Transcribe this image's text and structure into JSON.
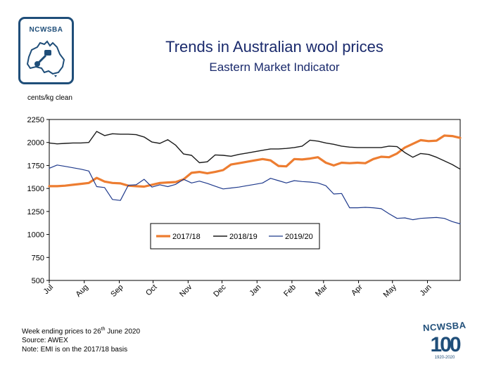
{
  "logo": {
    "text": "NCWSBA"
  },
  "brand_badge": {
    "name": "NCWSBA",
    "number": "100",
    "years": "1920-2020"
  },
  "unit_label": "cents/kg clean",
  "colors": {
    "s1718": "#ed7d31",
    "s1819": "#1a1a1a",
    "s1920": "#1f3a8c",
    "title": "#1a2a6c",
    "brand": "#1f4e79"
  },
  "chart_data": {
    "type": "line",
    "title": "Trends in Australian wool prices",
    "subtitle": "Eastern Market Indicator",
    "ylabel": "cents/kg clean",
    "ylim": [
      500,
      2250
    ],
    "yticks": [
      500,
      750,
      1000,
      1250,
      1500,
      1750,
      2000,
      2250
    ],
    "xlim": [
      0,
      52
    ],
    "x_ticks": [
      {
        "label": "Jul",
        "x": 0
      },
      {
        "label": "Aug",
        "x": 4.43
      },
      {
        "label": "Sep",
        "x": 8.86
      },
      {
        "label": "Oct",
        "x": 13.14
      },
      {
        "label": "Nov",
        "x": 17.57
      },
      {
        "label": "Dec",
        "x": 21.86
      },
      {
        "label": "Jan",
        "x": 26.29
      },
      {
        "label": "Feb",
        "x": 30.71
      },
      {
        "label": "Mar",
        "x": 34.71
      },
      {
        "label": "Apr",
        "x": 39.14
      },
      {
        "label": "May",
        "x": 43.43
      },
      {
        "label": "Jun",
        "x": 47.86
      }
    ],
    "legend": {
      "position": "inside-bottom-center"
    },
    "series": [
      {
        "name": "2017/18",
        "color": "#ed7d31",
        "width": 3.2,
        "points": [
          [
            0,
            1525
          ],
          [
            1,
            1525
          ],
          [
            2,
            1530
          ],
          [
            3,
            1540
          ],
          [
            4,
            1550
          ],
          [
            5,
            1560
          ],
          [
            6,
            1615
          ],
          [
            7,
            1575
          ],
          [
            8,
            1560
          ],
          [
            9,
            1555
          ],
          [
            10,
            1530
          ],
          [
            11,
            1525
          ],
          [
            12,
            1520
          ],
          [
            13,
            1540
          ],
          [
            14,
            1560
          ],
          [
            15,
            1565
          ],
          [
            16,
            1570
          ],
          [
            17,
            1600
          ],
          [
            18,
            1670
          ],
          [
            19,
            1680
          ],
          [
            20,
            1665
          ],
          [
            21,
            1680
          ],
          [
            22,
            1700
          ],
          [
            23,
            1760
          ],
          [
            24,
            1775
          ],
          [
            25,
            1790
          ],
          [
            26,
            1805
          ],
          [
            27,
            1820
          ],
          [
            28,
            1805
          ],
          [
            29,
            1745
          ],
          [
            30,
            1740
          ],
          [
            31,
            1820
          ],
          [
            32,
            1815
          ],
          [
            33,
            1825
          ],
          [
            34,
            1840
          ],
          [
            35,
            1780
          ],
          [
            36,
            1750
          ],
          [
            37,
            1780
          ],
          [
            38,
            1775
          ],
          [
            39,
            1780
          ],
          [
            40,
            1775
          ],
          [
            41,
            1820
          ],
          [
            42,
            1845
          ],
          [
            43,
            1840
          ],
          [
            44,
            1880
          ],
          [
            45,
            1945
          ],
          [
            46,
            1985
          ],
          [
            47,
            2025
          ],
          [
            48,
            2015
          ],
          [
            49,
            2020
          ],
          [
            50,
            2075
          ],
          [
            51,
            2070
          ],
          [
            52,
            2050
          ]
        ]
      },
      {
        "name": "2018/19",
        "color": "#1a1a1a",
        "width": 1.4,
        "points": [
          [
            0,
            1995
          ],
          [
            1,
            1985
          ],
          [
            2,
            1990
          ],
          [
            3,
            1995
          ],
          [
            4,
            1995
          ],
          [
            5,
            2000
          ],
          [
            6,
            2120
          ],
          [
            7,
            2075
          ],
          [
            8,
            2095
          ],
          [
            9,
            2090
          ],
          [
            10,
            2090
          ],
          [
            11,
            2085
          ],
          [
            12,
            2060
          ],
          [
            13,
            2005
          ],
          [
            14,
            1990
          ],
          [
            15,
            2030
          ],
          [
            16,
            1970
          ],
          [
            17,
            1875
          ],
          [
            18,
            1860
          ],
          [
            19,
            1780
          ],
          [
            20,
            1790
          ],
          [
            21,
            1865
          ],
          [
            22,
            1860
          ],
          [
            23,
            1850
          ],
          [
            24,
            1870
          ],
          [
            25,
            1885
          ],
          [
            26,
            1900
          ],
          [
            27,
            1915
          ],
          [
            28,
            1930
          ],
          [
            29,
            1930
          ],
          [
            30,
            1935
          ],
          [
            31,
            1945
          ],
          [
            32,
            1960
          ],
          [
            33,
            2025
          ],
          [
            34,
            2015
          ],
          [
            35,
            1995
          ],
          [
            36,
            1980
          ],
          [
            37,
            1960
          ],
          [
            38,
            1950
          ],
          [
            39,
            1945
          ],
          [
            40,
            1945
          ],
          [
            41,
            1945
          ],
          [
            42,
            1945
          ],
          [
            43,
            1960
          ],
          [
            44,
            1955
          ],
          [
            45,
            1890
          ],
          [
            46,
            1840
          ],
          [
            47,
            1880
          ],
          [
            48,
            1870
          ],
          [
            49,
            1840
          ],
          [
            50,
            1800
          ],
          [
            51,
            1760
          ],
          [
            52,
            1710
          ]
        ]
      },
      {
        "name": "2019/20",
        "color": "#1f3a8c",
        "width": 1.2,
        "points": [
          [
            0,
            1720
          ],
          [
            1,
            1755
          ],
          [
            2,
            1740
          ],
          [
            3,
            1725
          ],
          [
            4,
            1710
          ],
          [
            5,
            1690
          ],
          [
            6,
            1520
          ],
          [
            7,
            1510
          ],
          [
            8,
            1380
          ],
          [
            9,
            1370
          ],
          [
            10,
            1535
          ],
          [
            11,
            1540
          ],
          [
            12,
            1600
          ],
          [
            13,
            1515
          ],
          [
            14,
            1540
          ],
          [
            15,
            1520
          ],
          [
            16,
            1545
          ],
          [
            17,
            1600
          ],
          [
            18,
            1560
          ],
          [
            19,
            1580
          ],
          [
            20,
            1555
          ],
          [
            21,
            1525
          ],
          [
            22,
            1495
          ],
          [
            23,
            1505
          ],
          [
            24,
            1515
          ],
          [
            25,
            1530
          ],
          [
            26,
            1545
          ],
          [
            27,
            1560
          ],
          [
            28,
            1610
          ],
          [
            29,
            1585
          ],
          [
            30,
            1560
          ],
          [
            31,
            1585
          ],
          [
            32,
            1575
          ],
          [
            33,
            1570
          ],
          [
            34,
            1560
          ],
          [
            35,
            1530
          ],
          [
            36,
            1440
          ],
          [
            37,
            1445
          ],
          [
            38,
            1290
          ],
          [
            39,
            1290
          ],
          [
            40,
            1295
          ],
          [
            41,
            1290
          ],
          [
            42,
            1280
          ],
          [
            43,
            1225
          ],
          [
            44,
            1175
          ],
          [
            45,
            1180
          ],
          [
            46,
            1160
          ],
          [
            47,
            1175
          ],
          [
            48,
            1180
          ],
          [
            49,
            1185
          ],
          [
            50,
            1175
          ],
          [
            51,
            1140
          ],
          [
            52,
            1115
          ]
        ]
      }
    ]
  },
  "footnotes": {
    "line1_prefix": "Week ending prices to 26",
    "line1_sup": "th",
    "line1_suffix": " June 2020",
    "line2": "Source: AWEX",
    "line3": "Note: EMI is on the 2017/18 basis"
  }
}
